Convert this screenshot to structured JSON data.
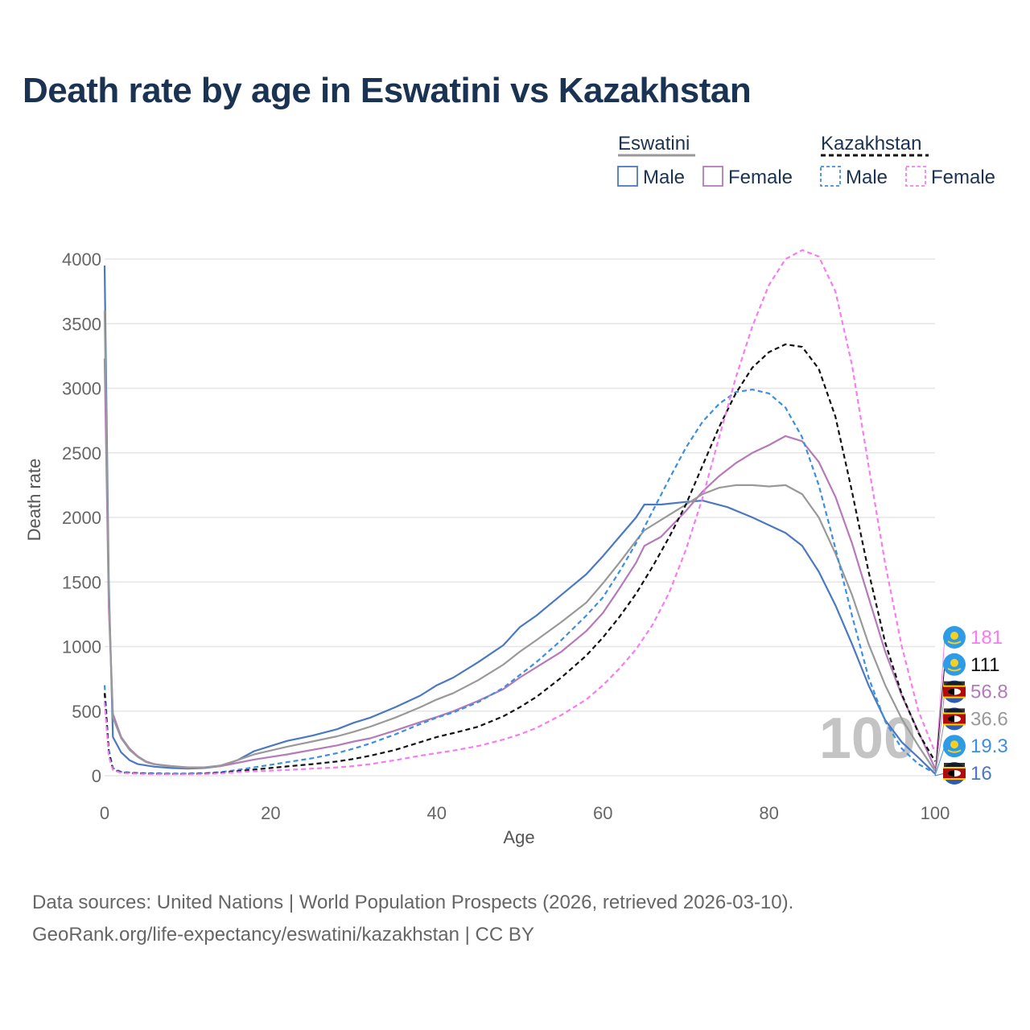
{
  "chart_data": {
    "type": "line",
    "title": "Death rate by age in Eswatini vs Kazakhstan",
    "xlabel": "Age",
    "ylabel": "Death rate",
    "xlim": [
      0,
      100
    ],
    "ylim": [
      0,
      4000
    ],
    "x_ticks": [
      0,
      20,
      40,
      60,
      80,
      100
    ],
    "y_ticks": [
      0,
      500,
      1000,
      1500,
      2000,
      2500,
      3000,
      3500,
      4000
    ],
    "grid": true,
    "annotation": "100",
    "legend": {
      "placement": "top-right",
      "groups": [
        {
          "name": "Eswatini",
          "entries": [
            "Male",
            "Female"
          ]
        },
        {
          "name": "Kazakhstan",
          "entries": [
            "Male",
            "Female"
          ]
        }
      ]
    },
    "series": [
      {
        "key": "eswatini-male",
        "name": "Eswatini Male",
        "country": "Eswatini",
        "sex": "Male",
        "end_label": "16",
        "color": "#4a78c2",
        "dashed": false,
        "points": [
          [
            0,
            3950
          ],
          [
            0.5,
            1500
          ],
          [
            1,
            300
          ],
          [
            2,
            180
          ],
          [
            3,
            120
          ],
          [
            4,
            90
          ],
          [
            5,
            80
          ],
          [
            6,
            70
          ],
          [
            8,
            60
          ],
          [
            10,
            55
          ],
          [
            12,
            60
          ],
          [
            14,
            75
          ],
          [
            16,
            120
          ],
          [
            18,
            190
          ],
          [
            20,
            230
          ],
          [
            22,
            270
          ],
          [
            25,
            310
          ],
          [
            28,
            360
          ],
          [
            30,
            410
          ],
          [
            32,
            450
          ],
          [
            35,
            530
          ],
          [
            38,
            620
          ],
          [
            40,
            700
          ],
          [
            42,
            760
          ],
          [
            45,
            880
          ],
          [
            48,
            1010
          ],
          [
            50,
            1150
          ],
          [
            52,
            1240
          ],
          [
            55,
            1400
          ],
          [
            58,
            1560
          ],
          [
            60,
            1700
          ],
          [
            62,
            1850
          ],
          [
            64,
            2000
          ],
          [
            65,
            2100
          ],
          [
            67,
            2100
          ],
          [
            70,
            2120
          ],
          [
            72,
            2130
          ],
          [
            75,
            2080
          ],
          [
            78,
            2000
          ],
          [
            80,
            1940
          ],
          [
            82,
            1880
          ],
          [
            84,
            1780
          ],
          [
            86,
            1580
          ],
          [
            88,
            1320
          ],
          [
            90,
            1020
          ],
          [
            92,
            700
          ],
          [
            94,
            430
          ],
          [
            96,
            260
          ],
          [
            98,
            140
          ],
          [
            100,
            16
          ]
        ]
      },
      {
        "key": "eswatini-female",
        "name": "Eswatini Female",
        "country": "Eswatini",
        "sex": "Female",
        "end_label": "56.8",
        "color": "#b57ab8",
        "dashed": false,
        "points": [
          [
            0,
            3230
          ],
          [
            0.5,
            1300
          ],
          [
            1,
            480
          ],
          [
            2,
            300
          ],
          [
            3,
            210
          ],
          [
            4,
            150
          ],
          [
            5,
            110
          ],
          [
            6,
            90
          ],
          [
            8,
            75
          ],
          [
            10,
            65
          ],
          [
            12,
            65
          ],
          [
            14,
            75
          ],
          [
            16,
            100
          ],
          [
            18,
            125
          ],
          [
            20,
            145
          ],
          [
            22,
            165
          ],
          [
            25,
            200
          ],
          [
            28,
            235
          ],
          [
            30,
            265
          ],
          [
            32,
            290
          ],
          [
            35,
            350
          ],
          [
            38,
            415
          ],
          [
            40,
            455
          ],
          [
            42,
            500
          ],
          [
            45,
            580
          ],
          [
            48,
            670
          ],
          [
            50,
            760
          ],
          [
            52,
            840
          ],
          [
            55,
            960
          ],
          [
            58,
            1120
          ],
          [
            60,
            1260
          ],
          [
            62,
            1450
          ],
          [
            64,
            1650
          ],
          [
            65,
            1780
          ],
          [
            67,
            1850
          ],
          [
            70,
            2050
          ],
          [
            72,
            2200
          ],
          [
            74,
            2320
          ],
          [
            76,
            2420
          ],
          [
            78,
            2500
          ],
          [
            80,
            2560
          ],
          [
            82,
            2630
          ],
          [
            84,
            2590
          ],
          [
            86,
            2430
          ],
          [
            88,
            2160
          ],
          [
            90,
            1800
          ],
          [
            92,
            1380
          ],
          [
            94,
            960
          ],
          [
            96,
            620
          ],
          [
            98,
            340
          ],
          [
            100,
            57
          ]
        ]
      },
      {
        "key": "eswatini-total",
        "name": "Eswatini",
        "country": "Eswatini",
        "sex": "Total",
        "end_label": "36.6",
        "color": "#999999",
        "dashed": false,
        "points": [
          [
            0,
            3600
          ],
          [
            0.5,
            1400
          ],
          [
            1,
            450
          ],
          [
            2,
            290
          ],
          [
            3,
            200
          ],
          [
            4,
            145
          ],
          [
            5,
            105
          ],
          [
            6,
            88
          ],
          [
            8,
            72
          ],
          [
            10,
            62
          ],
          [
            12,
            65
          ],
          [
            14,
            80
          ],
          [
            16,
            120
          ],
          [
            18,
            165
          ],
          [
            20,
            195
          ],
          [
            22,
            225
          ],
          [
            25,
            265
          ],
          [
            28,
            305
          ],
          [
            30,
            340
          ],
          [
            32,
            380
          ],
          [
            35,
            450
          ],
          [
            38,
            530
          ],
          [
            40,
            590
          ],
          [
            42,
            640
          ],
          [
            45,
            740
          ],
          [
            48,
            860
          ],
          [
            50,
            960
          ],
          [
            52,
            1050
          ],
          [
            55,
            1190
          ],
          [
            58,
            1340
          ],
          [
            60,
            1490
          ],
          [
            62,
            1650
          ],
          [
            64,
            1820
          ],
          [
            65,
            1900
          ],
          [
            67,
            1980
          ],
          [
            70,
            2100
          ],
          [
            72,
            2180
          ],
          [
            74,
            2230
          ],
          [
            76,
            2250
          ],
          [
            78,
            2250
          ],
          [
            80,
            2240
          ],
          [
            82,
            2250
          ],
          [
            84,
            2180
          ],
          [
            86,
            2000
          ],
          [
            88,
            1720
          ],
          [
            90,
            1400
          ],
          [
            92,
            1020
          ],
          [
            94,
            700
          ],
          [
            96,
            440
          ],
          [
            98,
            230
          ],
          [
            100,
            37
          ]
        ]
      },
      {
        "key": "kazakhstan-male",
        "name": "Kazakhstan Male",
        "country": "Kazakhstan",
        "sex": "Male",
        "end_label": "19.3",
        "color": "#3c8fe0",
        "dashed": true,
        "points": [
          [
            0,
            700
          ],
          [
            0.5,
            200
          ],
          [
            1,
            60
          ],
          [
            2,
            30
          ],
          [
            3,
            25
          ],
          [
            4,
            22
          ],
          [
            5,
            20
          ],
          [
            6,
            18
          ],
          [
            8,
            16
          ],
          [
            10,
            16
          ],
          [
            12,
            20
          ],
          [
            14,
            28
          ],
          [
            16,
            45
          ],
          [
            18,
            65
          ],
          [
            20,
            85
          ],
          [
            22,
            105
          ],
          [
            25,
            135
          ],
          [
            28,
            175
          ],
          [
            30,
            210
          ],
          [
            32,
            250
          ],
          [
            35,
            320
          ],
          [
            38,
            400
          ],
          [
            40,
            450
          ],
          [
            42,
            490
          ],
          [
            45,
            570
          ],
          [
            48,
            680
          ],
          [
            50,
            780
          ],
          [
            52,
            880
          ],
          [
            55,
            1050
          ],
          [
            58,
            1240
          ],
          [
            60,
            1380
          ],
          [
            62,
            1580
          ],
          [
            64,
            1800
          ],
          [
            66,
            2050
          ],
          [
            68,
            2300
          ],
          [
            70,
            2540
          ],
          [
            72,
            2740
          ],
          [
            74,
            2880
          ],
          [
            76,
            2970
          ],
          [
            78,
            2990
          ],
          [
            80,
            2960
          ],
          [
            82,
            2850
          ],
          [
            84,
            2620
          ],
          [
            86,
            2250
          ],
          [
            88,
            1760
          ],
          [
            90,
            1240
          ],
          [
            92,
            760
          ],
          [
            94,
            420
          ],
          [
            96,
            210
          ],
          [
            98,
            90
          ],
          [
            100,
            19
          ]
        ]
      },
      {
        "key": "kazakhstan-total",
        "name": "Kazakhstan",
        "country": "Kazakhstan",
        "sex": "Total",
        "end_label": "111",
        "color": "#111111",
        "dashed": true,
        "points": [
          [
            0,
            640
          ],
          [
            0.5,
            180
          ],
          [
            1,
            50
          ],
          [
            2,
            25
          ],
          [
            3,
            20
          ],
          [
            4,
            18
          ],
          [
            5,
            16
          ],
          [
            6,
            15
          ],
          [
            8,
            14
          ],
          [
            10,
            14
          ],
          [
            12,
            17
          ],
          [
            14,
            23
          ],
          [
            16,
            35
          ],
          [
            18,
            48
          ],
          [
            20,
            60
          ],
          [
            22,
            72
          ],
          [
            25,
            90
          ],
          [
            28,
            110
          ],
          [
            30,
            130
          ],
          [
            32,
            155
          ],
          [
            35,
            200
          ],
          [
            38,
            260
          ],
          [
            40,
            300
          ],
          [
            42,
            330
          ],
          [
            45,
            380
          ],
          [
            48,
            460
          ],
          [
            50,
            530
          ],
          [
            52,
            610
          ],
          [
            55,
            760
          ],
          [
            58,
            930
          ],
          [
            60,
            1070
          ],
          [
            62,
            1230
          ],
          [
            64,
            1410
          ],
          [
            66,
            1620
          ],
          [
            68,
            1850
          ],
          [
            70,
            2100
          ],
          [
            72,
            2400
          ],
          [
            74,
            2700
          ],
          [
            76,
            2960
          ],
          [
            78,
            3160
          ],
          [
            80,
            3280
          ],
          [
            82,
            3340
          ],
          [
            84,
            3320
          ],
          [
            86,
            3150
          ],
          [
            88,
            2780
          ],
          [
            90,
            2200
          ],
          [
            92,
            1580
          ],
          [
            94,
            1030
          ],
          [
            96,
            630
          ],
          [
            98,
            330
          ],
          [
            100,
            111
          ]
        ]
      },
      {
        "key": "kazakhstan-female",
        "name": "Kazakhstan Female",
        "country": "Kazakhstan",
        "sex": "Female",
        "end_label": "181",
        "color": "#f77cf0",
        "dashed": true,
        "points": [
          [
            0,
            570
          ],
          [
            0.5,
            150
          ],
          [
            1,
            45
          ],
          [
            2,
            22
          ],
          [
            3,
            18
          ],
          [
            4,
            15
          ],
          [
            5,
            13
          ],
          [
            6,
            12
          ],
          [
            8,
            11
          ],
          [
            10,
            11
          ],
          [
            12,
            13
          ],
          [
            14,
            18
          ],
          [
            16,
            28
          ],
          [
            18,
            35
          ],
          [
            20,
            40
          ],
          [
            22,
            45
          ],
          [
            25,
            55
          ],
          [
            28,
            65
          ],
          [
            30,
            75
          ],
          [
            32,
            90
          ],
          [
            35,
            120
          ],
          [
            38,
            155
          ],
          [
            40,
            175
          ],
          [
            42,
            195
          ],
          [
            45,
            230
          ],
          [
            48,
            280
          ],
          [
            50,
            320
          ],
          [
            52,
            370
          ],
          [
            55,
            470
          ],
          [
            58,
            590
          ],
          [
            60,
            700
          ],
          [
            62,
            830
          ],
          [
            64,
            980
          ],
          [
            66,
            1170
          ],
          [
            68,
            1420
          ],
          [
            70,
            1750
          ],
          [
            72,
            2150
          ],
          [
            74,
            2620
          ],
          [
            76,
            3080
          ],
          [
            78,
            3480
          ],
          [
            80,
            3800
          ],
          [
            82,
            4000
          ],
          [
            84,
            4070
          ],
          [
            86,
            4020
          ],
          [
            88,
            3750
          ],
          [
            90,
            3180
          ],
          [
            92,
            2400
          ],
          [
            94,
            1640
          ],
          [
            96,
            1000
          ],
          [
            98,
            500
          ],
          [
            100,
            181
          ]
        ]
      }
    ]
  },
  "footer": {
    "line1": "Data sources: United Nations | World Population Prospects (2026, retrieved 2026-03-10).",
    "line2": "GeoRank.org/life-expectancy/eswatini/kazakhstan | CC BY"
  }
}
